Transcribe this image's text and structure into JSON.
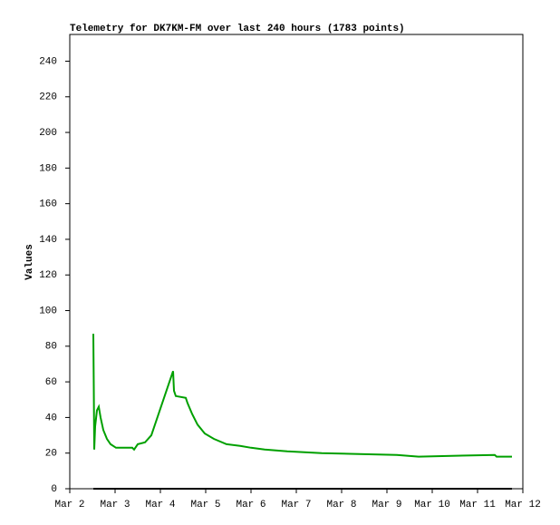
{
  "chart_data": {
    "type": "line",
    "title": "Telemetry for DK7KM-FM over last 240 hours (1783 points)",
    "y_label": "Values",
    "x": [
      0.52,
      0.53,
      0.54,
      0.56,
      0.6,
      0.64,
      0.68,
      0.74,
      0.82,
      0.9,
      1.02,
      1.38,
      1.42,
      1.5,
      1.66,
      1.8,
      2.28,
      2.3,
      2.34,
      2.56,
      2.6,
      2.7,
      2.82,
      2.98,
      3.18,
      3.46,
      3.76,
      4.0,
      4.3,
      4.8,
      5.56,
      7.22,
      7.7,
      9.38,
      9.42,
      9.76
    ],
    "series": [
      {
        "color": "#00a000",
        "values": [
          87,
          57,
          22,
          35,
          44,
          46,
          40,
          33,
          28,
          25,
          23,
          23,
          22,
          25,
          26,
          30,
          66,
          55,
          52,
          51,
          48,
          42,
          36,
          31,
          28,
          25,
          24,
          23,
          22,
          21,
          20,
          19,
          18,
          19,
          18,
          18
        ]
      },
      {
        "color": "#000000",
        "values": [
          0,
          0,
          0,
          0,
          0,
          0,
          0,
          0,
          0,
          0,
          0,
          0,
          0,
          0,
          0,
          0,
          0,
          0,
          0,
          0,
          0,
          0,
          0,
          0,
          0,
          0,
          0,
          0,
          0,
          0,
          0,
          0,
          0,
          0,
          0,
          0
        ]
      }
    ],
    "xlim": [
      0,
      10
    ],
    "xticks": [
      {
        "value": 0,
        "label": "Mar 2"
      },
      {
        "value": 1,
        "label": "Mar 3"
      },
      {
        "value": 2,
        "label": "Mar 4"
      },
      {
        "value": 3,
        "label": "Mar 5"
      },
      {
        "value": 4,
        "label": "Mar 6"
      },
      {
        "value": 5,
        "label": "Mar 7"
      },
      {
        "value": 6,
        "label": "Mar 8"
      },
      {
        "value": 7,
        "label": "Mar 9"
      },
      {
        "value": 8,
        "label": "Mar 10"
      },
      {
        "value": 9,
        "label": "Mar 11"
      },
      {
        "value": 10,
        "label": "Mar 12"
      }
    ],
    "ylim": [
      0,
      255
    ],
    "yticks": [
      0,
      20,
      40,
      60,
      80,
      100,
      120,
      140,
      160,
      180,
      200,
      220,
      240
    ],
    "grid": false
  }
}
